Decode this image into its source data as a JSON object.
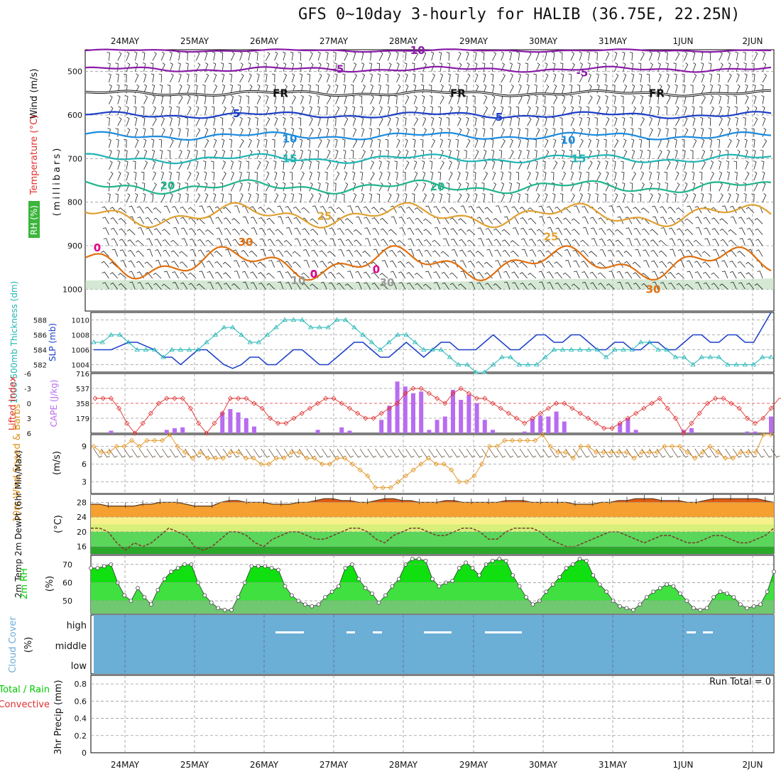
{
  "title": "GFS 0~10day 3-hourly for HALIB (36.75E, 22.25N)",
  "dates": [
    "24MAY",
    "25MAY",
    "26MAY",
    "27MAY",
    "28MAY",
    "29MAY",
    "30MAY",
    "31MAY",
    "1JUN",
    "2JUN"
  ],
  "colors": {
    "grid": "#9a9a9a",
    "purple": "#8a1ca8",
    "darkblue": "#1c3fc8",
    "blue": "#1a8be0",
    "teal": "#20b4b4",
    "green": "#20b48c",
    "orange": "#e0a030",
    "darkorange": "#e07010",
    "magenta": "#e0008a",
    "cape": "#b86cf0",
    "li": "#e03030",
    "wind": "#e0901a",
    "rh": "#00c800",
    "cloud": "#6baed6"
  },
  "panels": {
    "upper_air": {
      "ylabel_wind": "Wind (m/s)",
      "ylabel_temp": "Temperature (°C)",
      "ylabel_rh": "RH (%)",
      "ylabel_units": "(millibars)",
      "yticks": [
        "500",
        "600",
        "700",
        "800",
        "900",
        "1000"
      ],
      "contour_labels": [
        "-10",
        "-5",
        "-5",
        "FR",
        "FR",
        "FR",
        "5",
        "5",
        "10",
        "10",
        "15",
        "15",
        "20",
        "20",
        "25",
        "25",
        "30",
        "30",
        "0",
        "0",
        "0",
        "10",
        "30"
      ]
    },
    "thickness": {
      "ylabel_left": "1000-500mb Thickness (dm)",
      "ylabel_right": "SLP (mb)",
      "yticks_left": [
        "588",
        "586",
        "584",
        "582"
      ],
      "yticks_right": [
        "1010",
        "1008",
        "1006",
        "1004"
      ]
    },
    "cape": {
      "ylabel_left": "Lifted Index",
      "ylabel_right": "CAPE (J/kg)",
      "yticks_left": [
        "-6",
        "-3",
        "0",
        "3",
        "6"
      ],
      "yticks_right": [
        "716",
        "537",
        "358",
        "179"
      ]
    },
    "wind10": {
      "ylabel": "10m Wind Speed & Barbs",
      "units": "(m/s)",
      "yticks": [
        "9",
        "6",
        "3"
      ]
    },
    "temp2m": {
      "ylabel": "2m Temp 2m DewPt (6hr Min/Max)",
      "units": "(°C)",
      "yticks": [
        "28",
        "24",
        "20",
        "16"
      ]
    },
    "rh2m": {
      "ylabel": "2m RH",
      "units": "(%)",
      "yticks": [
        "70",
        "60",
        "50"
      ]
    },
    "cloud": {
      "ylabel": "Cloud Cover",
      "units": "(%)",
      "levels": [
        "high",
        "middle",
        "low"
      ]
    },
    "precip": {
      "ylabel": "3hr Precip (mm)",
      "legend_total": "Total / Rain",
      "legend_conv": "Convective",
      "run_total": "Run Total = 0",
      "yticks": [
        "0.8",
        "0.6",
        "0.4",
        "0.2",
        "0"
      ]
    }
  },
  "chart_data": [
    {
      "type": "line",
      "title": "1000-500mb Thickness (dm) / SLP (mb)",
      "x_start": "23MAY 18Z",
      "x_step_hours": 3,
      "series": [
        {
          "name": "1000-500mb Thickness (dm)",
          "axis": "left",
          "ylim": [
            581,
            589
          ],
          "values": [
            585,
            585,
            586,
            586,
            585,
            584,
            584,
            584,
            583,
            584,
            584,
            584,
            584,
            585,
            586,
            587,
            587,
            586,
            585,
            585,
            586,
            587,
            588,
            588,
            588,
            587,
            587,
            587,
            588,
            588,
            587,
            586,
            585,
            584,
            585,
            586,
            586,
            585,
            584,
            584,
            584,
            583,
            582,
            582,
            581,
            581,
            582,
            583,
            583,
            582,
            582,
            582,
            583,
            584,
            584,
            584,
            584,
            584,
            584,
            583,
            584,
            584,
            584,
            585,
            585,
            584,
            584,
            583,
            583,
            582,
            583,
            583,
            583,
            582,
            582,
            582,
            582,
            583,
            583
          ]
        },
        {
          "name": "SLP (mb)",
          "axis": "right",
          "ylim": [
            1003,
            1011
          ],
          "values": [
            1006,
            1006,
            1006,
            1006.5,
            1007,
            1007,
            1006.5,
            1006,
            1005,
            1005,
            1004,
            1005,
            1006,
            1006,
            1005,
            1004,
            1003.5,
            1004,
            1005,
            1005,
            1004,
            1004,
            1005,
            1006,
            1006,
            1005,
            1004,
            1004,
            1005,
            1006,
            1007,
            1007,
            1006,
            1005,
            1005,
            1006,
            1007,
            1006,
            1005,
            1006,
            1007,
            1007,
            1006,
            1006,
            1006,
            1007,
            1008,
            1007,
            1006,
            1006,
            1007,
            1008,
            1008,
            1007,
            1007,
            1008,
            1008,
            1007,
            1006,
            1006,
            1007,
            1007,
            1006,
            1006,
            1007,
            1007,
            1006,
            1006,
            1007,
            1008,
            1008,
            1007,
            1007,
            1008,
            1008,
            1007,
            1007,
            1009,
            1011
          ]
        }
      ]
    },
    {
      "type": "bar",
      "title": "CAPE (J/kg) / Lifted Index",
      "x_start": "23MAY 18Z",
      "x_step_hours": 3,
      "series": [
        {
          "name": "CAPE (J/kg)",
          "axis": "right",
          "ylim": [
            0,
            716
          ],
          "values": [
            0,
            0,
            30,
            0,
            0,
            0,
            0,
            0,
            0,
            40,
            60,
            70,
            0,
            0,
            0,
            0,
            250,
            290,
            250,
            180,
            80,
            0,
            0,
            0,
            0,
            0,
            0,
            0,
            40,
            0,
            0,
            70,
            30,
            0,
            0,
            0,
            160,
            330,
            620,
            560,
            480,
            500,
            40,
            160,
            200,
            520,
            400,
            460,
            360,
            160,
            40,
            0,
            0,
            0,
            20,
            170,
            210,
            200,
            260,
            140,
            0,
            0,
            0,
            0,
            0,
            0,
            120,
            180,
            40,
            0,
            0,
            0,
            0,
            0,
            40,
            60,
            0,
            0,
            0,
            0,
            0,
            0,
            20,
            20,
            0,
            200
          ]
        },
        {
          "name": "Lifted Index",
          "axis": "left",
          "ylim": [
            6,
            -6
          ],
          "values": [
            -1,
            -1,
            -1,
            1,
            4,
            6,
            4,
            2,
            0,
            -1,
            -1,
            -1,
            1,
            4,
            6,
            4,
            2,
            -1,
            -1,
            -1,
            0,
            1,
            3,
            4,
            4,
            3,
            2,
            1,
            0,
            -1,
            -1,
            0,
            1,
            2,
            3,
            3,
            2,
            1,
            0,
            -2,
            -3,
            -3,
            -2,
            -1,
            0,
            -2,
            -3,
            -2,
            -1,
            -1,
            0,
            1,
            2,
            3,
            4,
            3,
            2,
            1,
            0,
            0,
            1,
            2,
            3,
            4,
            5,
            5,
            4,
            3,
            2,
            1,
            0,
            -1,
            1,
            3,
            6,
            4,
            2,
            0,
            -1,
            -1,
            0,
            1,
            3,
            4,
            3,
            1,
            -1,
            -1,
            0
          ]
        }
      ]
    },
    {
      "type": "line",
      "title": "10m Wind Speed & Barbs",
      "ylabel": "(m/s)",
      "ylim": [
        1,
        11
      ],
      "x_start": "23MAY 18Z",
      "x_step_hours": 3,
      "series": [
        {
          "name": "10m Wind Speed",
          "values": [
            9,
            8,
            8,
            9,
            9,
            10,
            9,
            10,
            10,
            10,
            11,
            9,
            8,
            7,
            8,
            7,
            7,
            7,
            8,
            8,
            7,
            7,
            6,
            6,
            7,
            7,
            8,
            8,
            7,
            7,
            6,
            6,
            7,
            7,
            6,
            5,
            4,
            2,
            2,
            2,
            3,
            4,
            5,
            6,
            7,
            6,
            6,
            5,
            3,
            3,
            4,
            6,
            9,
            9,
            10,
            10,
            10,
            10,
            10,
            11,
            9,
            8,
            8,
            7,
            9,
            9,
            8,
            8,
            8,
            8,
            8,
            7,
            8,
            8,
            8,
            9,
            9,
            9,
            8,
            7,
            8,
            9,
            8,
            7,
            7,
            8,
            8,
            8,
            11,
            11
          ]
        }
      ]
    },
    {
      "type": "area",
      "title": "2m Temp / 2m DewPt",
      "ylabel": "(°C)",
      "ylim": [
        14,
        30
      ],
      "x_start": "23MAY 18Z",
      "x_step_hours": 3,
      "series": [
        {
          "name": "2m Temp",
          "values": [
            27.5,
            27.5,
            27,
            27,
            27,
            27,
            27.5,
            27.5,
            28,
            28,
            28,
            27.5,
            27,
            27,
            27,
            28,
            28.5,
            28.5,
            28,
            28,
            28,
            27.5,
            27.5,
            27.5,
            28,
            28,
            28.5,
            29,
            29,
            28.5,
            28.5,
            28,
            28,
            28.5,
            29,
            29,
            28.5,
            28.5,
            28,
            28,
            28,
            28.5,
            28.5,
            28,
            28,
            28,
            28,
            28,
            28.5,
            28.5,
            28.5,
            28,
            28,
            28,
            28,
            28,
            27.5,
            27.5,
            27.5,
            28,
            28,
            28.5,
            28.5,
            29,
            29,
            29,
            28.5,
            28.5,
            28.5,
            28,
            28,
            28.5,
            29,
            29,
            29,
            29,
            29,
            29,
            28.5,
            28
          ]
        },
        {
          "name": "2m DewPt",
          "values": [
            21,
            21,
            20,
            17,
            15,
            17,
            16,
            17,
            19,
            21,
            20,
            19,
            16,
            15,
            16,
            18,
            20,
            20,
            19,
            17,
            16,
            18,
            19,
            20,
            20,
            19,
            18,
            18,
            19,
            20,
            21,
            21,
            20,
            18,
            17,
            19,
            20,
            21,
            21,
            20,
            19,
            19,
            20,
            21,
            21,
            20,
            18,
            18,
            20,
            21,
            21,
            21,
            20,
            18,
            17,
            16,
            16,
            17,
            18,
            19,
            20,
            20,
            19,
            18,
            17,
            18,
            19,
            19,
            18,
            17,
            17,
            18,
            19,
            19,
            18,
            17,
            17,
            18,
            19,
            21
          ]
        }
      ]
    },
    {
      "type": "area",
      "title": "2m RH",
      "ylabel": "(%)",
      "ylim": [
        43,
        75
      ],
      "x_start": "23MAY 18Z",
      "x_step_hours": 3,
      "series": [
        {
          "name": "2m RH",
          "values": [
            68,
            68,
            69,
            70,
            60,
            53,
            50,
            57,
            52,
            48,
            56,
            62,
            66,
            68,
            70,
            70,
            60,
            53,
            49,
            46,
            45,
            45,
            52,
            60,
            69,
            69,
            69,
            68,
            67,
            58,
            53,
            50,
            48,
            47,
            48,
            52,
            55,
            58,
            68,
            70,
            62,
            57,
            54,
            49,
            53,
            58,
            62,
            70,
            73,
            73,
            72,
            62,
            58,
            60,
            61,
            68,
            71,
            68,
            64,
            70,
            72,
            73,
            72,
            64,
            58,
            52,
            48,
            50,
            55,
            59,
            63,
            68,
            70,
            73,
            72,
            64,
            59,
            55,
            50,
            47,
            46,
            45,
            48,
            52,
            55,
            57,
            59,
            58,
            54,
            50,
            46,
            45,
            46,
            52,
            55,
            54,
            52,
            48,
            46,
            47,
            48,
            55,
            66
          ]
        }
      ]
    }
  ]
}
